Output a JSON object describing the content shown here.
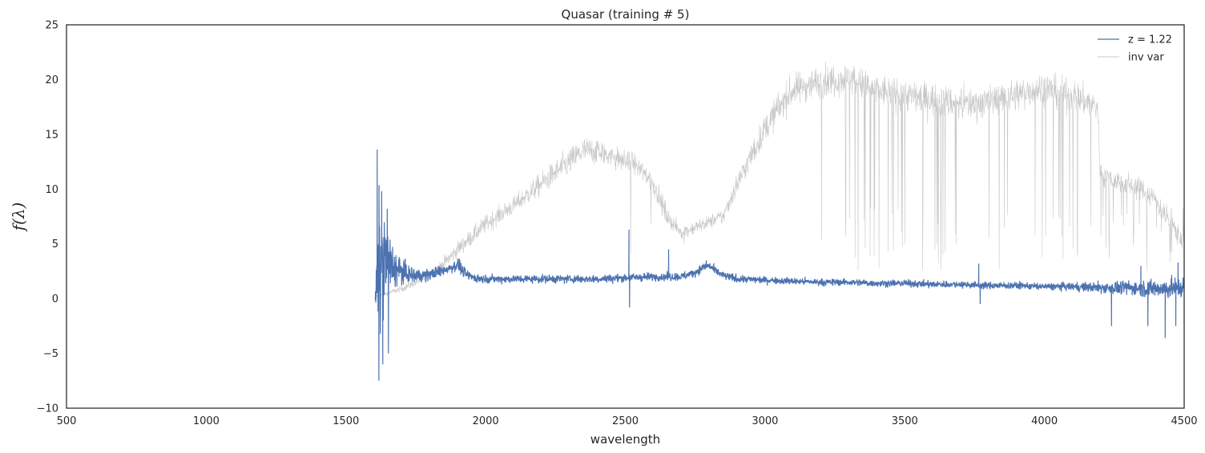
{
  "chart_data": {
    "type": "line",
    "title": "Quasar (training # 5)",
    "xlabel": "wavelength",
    "ylabel": "f(λ)",
    "xlim": [
      500,
      4500
    ],
    "ylim": [
      -10,
      25
    ],
    "x_ticks": [
      "500",
      "1000",
      "1500",
      "2000",
      "2500",
      "3000",
      "3500",
      "4000",
      "4500"
    ],
    "y_ticks": [
      "25",
      "20",
      "15",
      "10",
      "5",
      "0",
      "−5",
      "−10"
    ],
    "grid": false,
    "legend_position": "top-right",
    "series": [
      {
        "name": "z = 1.22",
        "color": "#4c72b0",
        "x": [
          1605,
          1615,
          1625,
          1640,
          1660,
          1690,
          1720,
          1760,
          1800,
          1850,
          1880,
          1900,
          1910,
          1930,
          1960,
          2000,
          2100,
          2200,
          2300,
          2400,
          2500,
          2600,
          2700,
          2750,
          2780,
          2800,
          2820,
          2850,
          2900,
          3000,
          3100,
          3200,
          3300,
          3400,
          3500,
          3600,
          3700,
          3800,
          3900,
          4000,
          4100,
          4200,
          4300,
          4400,
          4500
        ],
        "y": [
          0.0,
          1.6,
          2.8,
          3.4,
          3.0,
          2.6,
          2.2,
          2.1,
          2.2,
          2.6,
          2.9,
          3.1,
          2.8,
          2.2,
          1.9,
          1.8,
          1.8,
          1.8,
          1.8,
          1.8,
          1.9,
          2.0,
          2.0,
          2.4,
          2.9,
          3.0,
          2.6,
          2.1,
          1.8,
          1.7,
          1.6,
          1.5,
          1.5,
          1.4,
          1.4,
          1.3,
          1.3,
          1.2,
          1.2,
          1.1,
          1.1,
          1.0,
          1.0,
          0.9,
          1.0
        ],
        "noise": [
          0.2,
          6.5,
          5.2,
          3.8,
          2.2,
          1.2,
          0.8,
          0.6,
          0.5,
          0.5,
          0.5,
          0.5,
          0.5,
          0.45,
          0.4,
          0.35,
          0.35,
          0.35,
          0.35,
          0.35,
          0.35,
          0.35,
          0.35,
          0.35,
          0.35,
          0.35,
          0.35,
          0.35,
          0.35,
          0.3,
          0.3,
          0.3,
          0.3,
          0.3,
          0.3,
          0.3,
          0.3,
          0.3,
          0.3,
          0.3,
          0.35,
          0.5,
          0.6,
          0.8,
          0.9
        ],
        "spikes": [
          {
            "x": 1612,
            "y": 13.6
          },
          {
            "x": 1618,
            "y": -7.5
          },
          {
            "x": 1628,
            "y": 9.8
          },
          {
            "x": 1632,
            "y": -6.0
          },
          {
            "x": 1648,
            "y": 8.2
          },
          {
            "x": 1652,
            "y": -5.0
          },
          {
            "x": 1908,
            "y": 3.5
          },
          {
            "x": 2513,
            "y": 6.3
          },
          {
            "x": 2515,
            "y": -0.8
          },
          {
            "x": 2655,
            "y": 4.5
          },
          {
            "x": 2790,
            "y": 3.5
          },
          {
            "x": 3765,
            "y": 3.2
          },
          {
            "x": 3770,
            "y": -0.5
          },
          {
            "x": 4240,
            "y": -2.5
          },
          {
            "x": 4345,
            "y": 3.0
          },
          {
            "x": 4370,
            "y": -2.5
          },
          {
            "x": 4432,
            "y": -3.6
          },
          {
            "x": 4478,
            "y": 3.3
          },
          {
            "x": 4470,
            "y": -2.5
          }
        ]
      },
      {
        "name": "inv var",
        "color": "#c8c8c8",
        "x": [
          1605,
          1650,
          1700,
          1750,
          1800,
          1850,
          1900,
          2000,
          2100,
          2200,
          2300,
          2350,
          2400,
          2450,
          2500,
          2550,
          2600,
          2650,
          2700,
          2750,
          2800,
          2850,
          2900,
          2950,
          3000,
          3050,
          3100,
          3150,
          3200,
          3250,
          3300,
          3350,
          3400,
          3450,
          3500,
          3550,
          3600,
          3650,
          3700,
          3750,
          3800,
          3850,
          3900,
          3950,
          4000,
          4050,
          4100,
          4150,
          4190,
          4200,
          4250,
          4300,
          4350,
          4400,
          4450,
          4500
        ],
        "y": [
          0.2,
          0.5,
          0.9,
          1.5,
          2.2,
          3.2,
          4.5,
          6.8,
          8.5,
          10.5,
          12.5,
          13.5,
          13.5,
          13.0,
          12.5,
          12.0,
          10.5,
          7.5,
          6.0,
          6.5,
          7.0,
          7.5,
          10.5,
          13.0,
          15.5,
          17.5,
          19.0,
          19.5,
          19.8,
          20.0,
          20.2,
          19.5,
          19.0,
          18.8,
          18.6,
          18.4,
          18.2,
          18.0,
          17.8,
          17.8,
          18.0,
          18.3,
          18.6,
          19.0,
          19.3,
          18.8,
          18.5,
          18.0,
          17.5,
          11.5,
          10.8,
          10.5,
          10.0,
          9.0,
          7.0,
          5.0
        ],
        "noise": [
          0.1,
          0.2,
          0.3,
          0.4,
          0.5,
          0.6,
          0.7,
          0.8,
          0.8,
          1.0,
          1.2,
          1.2,
          1.2,
          1.0,
          1.0,
          1.0,
          1.0,
          0.8,
          0.6,
          0.6,
          0.6,
          0.7,
          1.0,
          1.2,
          1.2,
          1.4,
          1.4,
          1.4,
          1.4,
          1.4,
          1.4,
          1.4,
          1.4,
          1.4,
          1.4,
          1.4,
          1.4,
          1.4,
          1.4,
          1.4,
          1.4,
          1.4,
          1.4,
          1.4,
          1.4,
          1.4,
          1.4,
          1.4,
          1.4,
          1.0,
          1.0,
          1.0,
          1.0,
          1.0,
          1.0,
          1.0
        ],
        "dip_ranges": [
          [
            3260,
            3520
          ],
          [
            3540,
            3700
          ],
          [
            3800,
            3900
          ],
          [
            3930,
            4180
          ],
          [
            4195,
            4500
          ]
        ],
        "dip_floor": 2.5
      }
    ]
  }
}
